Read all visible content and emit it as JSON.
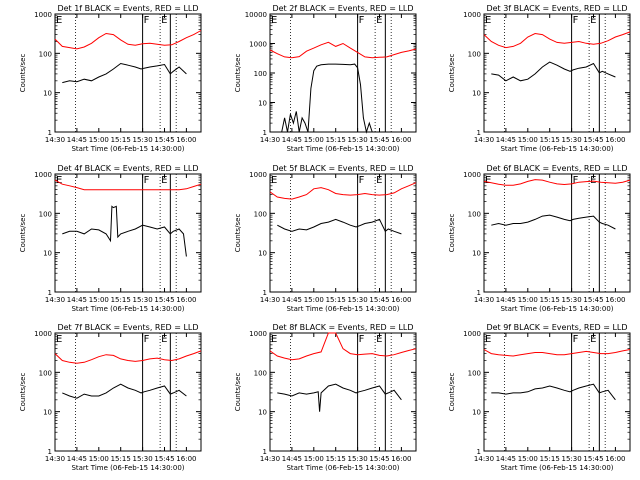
{
  "page": {
    "background": "#ffffff",
    "axis_color": "#000000"
  },
  "shared": {
    "xlabel": "Start Time (06-Feb-15 14:30:00)",
    "ylabel": "Counts/sec",
    "x_ticks": [
      "14:30",
      "14:45",
      "15:00",
      "15:15",
      "15:30",
      "15:45",
      "16:00"
    ],
    "y_ticks": [
      "1",
      "10",
      "100",
      "1000"
    ],
    "markers": [
      "E",
      "F",
      "E"
    ],
    "events_color": "#000000",
    "lld_color": "#ff0000",
    "dotted_lines_minutes": [
      14,
      72,
      83
    ],
    "solid_lines_minutes": [
      60,
      79
    ]
  },
  "chart_data": [
    {
      "type": "line",
      "title": "Det 1f BLACK = Events, RED = LLD",
      "xlabel": "Start Time (06-Feb-15 14:30:00)",
      "ylabel": "Counts/sec",
      "x_range_minutes": [
        0,
        100
      ],
      "ylim": [
        1,
        1000
      ],
      "y_scale": "log",
      "series": [
        {
          "name": "Events",
          "x": [
            5,
            10,
            15,
            20,
            25,
            30,
            35,
            40,
            45,
            50,
            55,
            59,
            61,
            65,
            70,
            75,
            79,
            81,
            85,
            90
          ],
          "values": [
            18,
            20,
            19,
            22,
            20,
            25,
            30,
            40,
            55,
            50,
            45,
            40,
            42,
            45,
            48,
            52,
            30,
            35,
            45,
            30
          ]
        },
        {
          "name": "LLD",
          "x": [
            0,
            5,
            10,
            15,
            20,
            25,
            30,
            35,
            40,
            45,
            50,
            55,
            60,
            65,
            70,
            75,
            80,
            85,
            90,
            95,
            100
          ],
          "values": [
            230,
            150,
            140,
            130,
            145,
            180,
            250,
            320,
            300,
            220,
            170,
            160,
            175,
            180,
            170,
            160,
            165,
            200,
            250,
            300,
            380
          ]
        }
      ]
    },
    {
      "type": "line",
      "title": "Det 2f BLACK = Events, RED = LLD",
      "xlabel": "Start Time (06-Feb-15 14:30:00)",
      "ylabel": "Counts/sec",
      "x_range_minutes": [
        0,
        100
      ],
      "ylim": [
        1,
        10000
      ],
      "y_scale": "log",
      "series": [
        {
          "name": "Events",
          "x": [
            8,
            10,
            12,
            14,
            16,
            18,
            20,
            22,
            24,
            26,
            28,
            30,
            32,
            35,
            40,
            45,
            50,
            55,
            58,
            60,
            62,
            64,
            66,
            68,
            70
          ],
          "values": [
            1,
            3,
            1,
            4,
            2,
            5,
            1,
            3,
            2,
            1,
            30,
            120,
            170,
            190,
            200,
            200,
            195,
            190,
            200,
            150,
            40,
            3,
            1,
            2,
            1
          ]
        },
        {
          "name": "LLD",
          "x": [
            0,
            5,
            10,
            15,
            20,
            25,
            30,
            35,
            40,
            45,
            50,
            55,
            60,
            65,
            70,
            75,
            80,
            85,
            90,
            95,
            100
          ],
          "values": [
            600,
            450,
            350,
            330,
            360,
            550,
            700,
            900,
            1100,
            800,
            1000,
            700,
            500,
            350,
            330,
            340,
            350,
            420,
            500,
            560,
            650
          ]
        }
      ]
    },
    {
      "type": "line",
      "title": "Det 3f BLACK = Events, RED = LLD",
      "xlabel": "Start Time (06-Feb-15 14:30:00)",
      "ylabel": "Counts/sec",
      "x_range_minutes": [
        0,
        100
      ],
      "ylim": [
        1,
        1000
      ],
      "y_scale": "log",
      "series": [
        {
          "name": "Events",
          "x": [
            5,
            10,
            15,
            20,
            25,
            30,
            35,
            40,
            45,
            50,
            55,
            59,
            61,
            65,
            70,
            75,
            79,
            81,
            85,
            90
          ],
          "values": [
            30,
            28,
            20,
            25,
            20,
            22,
            30,
            45,
            60,
            50,
            40,
            35,
            38,
            42,
            45,
            55,
            32,
            35,
            30,
            25
          ]
        },
        {
          "name": "LLD",
          "x": [
            0,
            5,
            10,
            15,
            20,
            25,
            30,
            35,
            40,
            45,
            50,
            55,
            60,
            65,
            70,
            75,
            80,
            85,
            90,
            95,
            100
          ],
          "values": [
            300,
            200,
            160,
            140,
            150,
            180,
            260,
            320,
            300,
            230,
            190,
            180,
            190,
            200,
            180,
            170,
            180,
            210,
            260,
            300,
            350
          ]
        }
      ]
    },
    {
      "type": "line",
      "title": "Det 4f BLACK = Events, RED = LLD",
      "xlabel": "Start Time (06-Feb-15 14:30:00)",
      "ylabel": "Counts/sec",
      "x_range_minutes": [
        0,
        100
      ],
      "ylim": [
        1,
        1000
      ],
      "y_scale": "log",
      "series": [
        {
          "name": "Events",
          "x": [
            5,
            10,
            15,
            20,
            25,
            30,
            35,
            38,
            39,
            40,
            42,
            43,
            45,
            50,
            55,
            60,
            65,
            70,
            75,
            79,
            81,
            85,
            88,
            90
          ],
          "values": [
            30,
            35,
            35,
            30,
            40,
            38,
            30,
            20,
            150,
            140,
            150,
            25,
            30,
            35,
            40,
            50,
            45,
            40,
            45,
            30,
            35,
            40,
            30,
            8
          ]
        },
        {
          "name": "LLD",
          "x": [
            0,
            5,
            10,
            15,
            20,
            25,
            30,
            35,
            40,
            45,
            50,
            55,
            60,
            65,
            70,
            75,
            80,
            85,
            90,
            95,
            100
          ],
          "values": [
            700,
            550,
            500,
            450,
            400,
            400,
            400,
            400,
            400,
            400,
            400,
            400,
            400,
            400,
            400,
            400,
            400,
            400,
            420,
            480,
            550
          ]
        }
      ]
    },
    {
      "type": "line",
      "title": "Det 5f BLACK = Events, RED = LLD",
      "xlabel": "Start Time (06-Feb-15 14:30:00)",
      "ylabel": "Counts/sec",
      "x_range_minutes": [
        0,
        100
      ],
      "ylim": [
        1,
        1000
      ],
      "y_scale": "log",
      "series": [
        {
          "name": "Events",
          "x": [
            5,
            10,
            15,
            20,
            25,
            30,
            35,
            40,
            45,
            50,
            55,
            59,
            61,
            65,
            70,
            75,
            79,
            81,
            85,
            90
          ],
          "values": [
            50,
            40,
            35,
            40,
            38,
            45,
            55,
            60,
            70,
            60,
            50,
            45,
            48,
            55,
            60,
            70,
            35,
            40,
            35,
            30
          ]
        },
        {
          "name": "LLD",
          "x": [
            0,
            5,
            10,
            15,
            20,
            25,
            30,
            35,
            40,
            45,
            50,
            55,
            60,
            65,
            70,
            75,
            80,
            85,
            90,
            95,
            100
          ],
          "values": [
            350,
            260,
            240,
            230,
            260,
            300,
            420,
            450,
            400,
            320,
            300,
            290,
            300,
            320,
            300,
            290,
            300,
            330,
            420,
            500,
            600
          ]
        }
      ]
    },
    {
      "type": "line",
      "title": "Det 6f BLACK = Events, RED = LLD",
      "xlabel": "Start Time (06-Feb-15 14:30:00)",
      "ylabel": "Counts/sec",
      "x_range_minutes": [
        0,
        100
      ],
      "ylim": [
        1,
        1000
      ],
      "y_scale": "log",
      "series": [
        {
          "name": "Events",
          "x": [
            5,
            10,
            15,
            20,
            25,
            30,
            35,
            40,
            45,
            50,
            55,
            59,
            61,
            65,
            70,
            75,
            79,
            81,
            85,
            90
          ],
          "values": [
            50,
            55,
            50,
            55,
            55,
            60,
            70,
            85,
            90,
            80,
            70,
            65,
            70,
            75,
            80,
            85,
            60,
            55,
            50,
            40
          ]
        },
        {
          "name": "LLD",
          "x": [
            0,
            5,
            10,
            15,
            20,
            25,
            30,
            35,
            40,
            45,
            50,
            55,
            60,
            65,
            70,
            75,
            80,
            85,
            90,
            95,
            100
          ],
          "values": [
            650,
            600,
            550,
            520,
            520,
            560,
            650,
            720,
            700,
            620,
            560,
            540,
            560,
            620,
            640,
            660,
            620,
            600,
            580,
            620,
            700
          ]
        }
      ]
    },
    {
      "type": "line",
      "title": "Det 7f BLACK = Events, RED = LLD",
      "xlabel": "Start Time (06-Feb-15 14:30:00)",
      "ylabel": "Counts/sec",
      "x_range_minutes": [
        0,
        100
      ],
      "ylim": [
        1,
        1000
      ],
      "y_scale": "log",
      "series": [
        {
          "name": "Events",
          "x": [
            5,
            10,
            15,
            20,
            25,
            30,
            35,
            40,
            45,
            50,
            55,
            59,
            61,
            65,
            70,
            75,
            79,
            81,
            85,
            90
          ],
          "values": [
            30,
            25,
            22,
            28,
            25,
            25,
            30,
            40,
            50,
            40,
            35,
            30,
            32,
            35,
            40,
            45,
            28,
            30,
            35,
            25
          ]
        },
        {
          "name": "LLD",
          "x": [
            0,
            5,
            10,
            15,
            20,
            25,
            30,
            35,
            40,
            45,
            50,
            55,
            60,
            65,
            70,
            75,
            80,
            85,
            90,
            95,
            100
          ],
          "values": [
            300,
            200,
            180,
            170,
            180,
            210,
            250,
            280,
            270,
            220,
            200,
            190,
            200,
            220,
            230,
            210,
            200,
            220,
            260,
            300,
            350
          ]
        }
      ]
    },
    {
      "type": "line",
      "title": "Det 8f BLACK = Events, RED = LLD",
      "xlabel": "Start Time (06-Feb-15 14:30:00)",
      "ylabel": "Counts/sec",
      "x_range_minutes": [
        0,
        100
      ],
      "ylim": [
        1,
        1000
      ],
      "y_scale": "log",
      "series": [
        {
          "name": "Events",
          "x": [
            5,
            10,
            15,
            20,
            25,
            30,
            33,
            34,
            35,
            40,
            45,
            50,
            55,
            59,
            61,
            65,
            70,
            75,
            79,
            81,
            85,
            90
          ],
          "values": [
            30,
            28,
            25,
            30,
            28,
            30,
            32,
            10,
            30,
            45,
            50,
            40,
            35,
            30,
            32,
            35,
            40,
            45,
            28,
            30,
            35,
            20
          ]
        },
        {
          "name": "LLD",
          "x": [
            0,
            5,
            10,
            15,
            20,
            25,
            30,
            35,
            40,
            45,
            50,
            55,
            60,
            65,
            70,
            75,
            80,
            85,
            90,
            95,
            100
          ],
          "values": [
            350,
            260,
            230,
            210,
            220,
            260,
            300,
            330,
            1000,
            1000,
            400,
            300,
            280,
            290,
            300,
            270,
            260,
            280,
            320,
            360,
            400
          ]
        }
      ]
    },
    {
      "type": "line",
      "title": "Det 9f BLACK = Events, RED = LLD",
      "xlabel": "Start Time (06-Feb-15 14:30:00)",
      "ylabel": "Counts/sec",
      "x_range_minutes": [
        0,
        100
      ],
      "ylim": [
        1,
        1000
      ],
      "y_scale": "log",
      "series": [
        {
          "name": "Events",
          "x": [
            5,
            10,
            15,
            20,
            25,
            30,
            35,
            40,
            45,
            50,
            55,
            59,
            61,
            65,
            70,
            75,
            79,
            81,
            85,
            90
          ],
          "values": [
            30,
            30,
            28,
            30,
            30,
            32,
            38,
            40,
            45,
            40,
            35,
            32,
            35,
            40,
            45,
            50,
            30,
            32,
            35,
            20
          ]
        },
        {
          "name": "LLD",
          "x": [
            0,
            5,
            10,
            15,
            20,
            25,
            30,
            35,
            40,
            45,
            50,
            55,
            60,
            65,
            70,
            75,
            80,
            85,
            90,
            95,
            100
          ],
          "values": [
            380,
            300,
            280,
            270,
            260,
            280,
            300,
            320,
            320,
            300,
            280,
            280,
            300,
            320,
            340,
            320,
            300,
            300,
            320,
            350,
            380
          ]
        }
      ]
    }
  ]
}
